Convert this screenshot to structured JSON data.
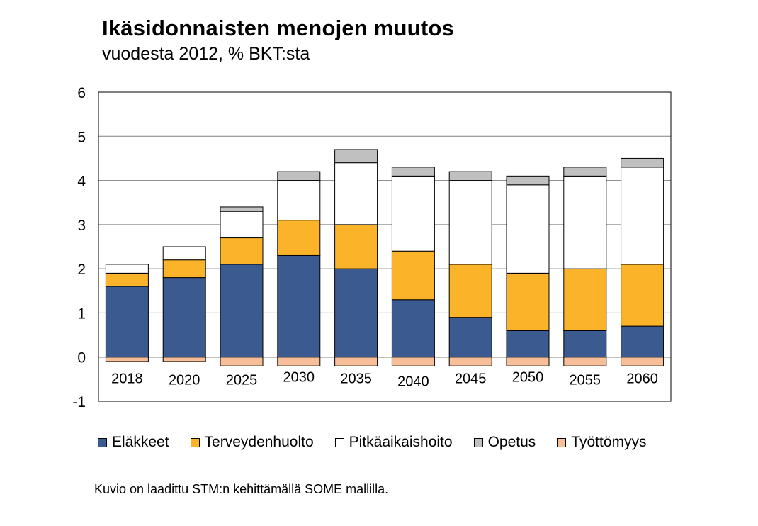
{
  "title": "Ikäsidonnaisten menojen muutos",
  "subtitle": "vuodesta 2012, % BKT:sta",
  "footnote": "Kuvio on laadittu STM:n kehittämällä SOME mallilla.",
  "chart_data": {
    "type": "bar",
    "stacked": true,
    "title": "Ikäsidonnaisten menojen muutos",
    "subtitle": "vuodesta 2012, % BKT:sta",
    "xlabel": "",
    "ylabel": "",
    "ylim": [
      -1,
      6
    ],
    "yticks": [
      "6",
      "5",
      "4",
      "3",
      "2",
      "1",
      "0",
      "-1"
    ],
    "ytick_values": [
      6,
      5,
      4,
      3,
      2,
      1,
      0,
      -1
    ],
    "grid": true,
    "legend_position": "bottom",
    "categories": [
      "2018",
      "2020",
      "2025",
      "2030",
      "2035",
      "2040",
      "2045",
      "2050",
      "2055",
      "2060"
    ],
    "series": [
      {
        "name": "Eläkkeet",
        "color": "#3b5a8f",
        "values": [
          1.6,
          1.8,
          2.1,
          2.3,
          2.0,
          1.3,
          0.9,
          0.6,
          0.6,
          0.7
        ]
      },
      {
        "name": "Terveydenhuolto",
        "color": "#fbb32a",
        "values": [
          0.3,
          0.4,
          0.6,
          0.8,
          1.0,
          1.1,
          1.2,
          1.3,
          1.4,
          1.4
        ]
      },
      {
        "name": "Pitkäaikaishoito",
        "color": "#ffffff",
        "values": [
          0.2,
          0.3,
          0.6,
          0.9,
          1.4,
          1.7,
          1.9,
          2.0,
          2.1,
          2.2
        ]
      },
      {
        "name": "Opetus",
        "color": "#c0c0c0",
        "values": [
          0.0,
          0.0,
          0.1,
          0.2,
          0.3,
          0.2,
          0.2,
          0.2,
          0.2,
          0.2
        ]
      },
      {
        "name": "Työttömyys",
        "color": "#f7be9a",
        "values": [
          -0.1,
          -0.1,
          -0.2,
          -0.2,
          -0.2,
          -0.2,
          -0.2,
          -0.2,
          -0.2,
          -0.2
        ]
      }
    ]
  }
}
